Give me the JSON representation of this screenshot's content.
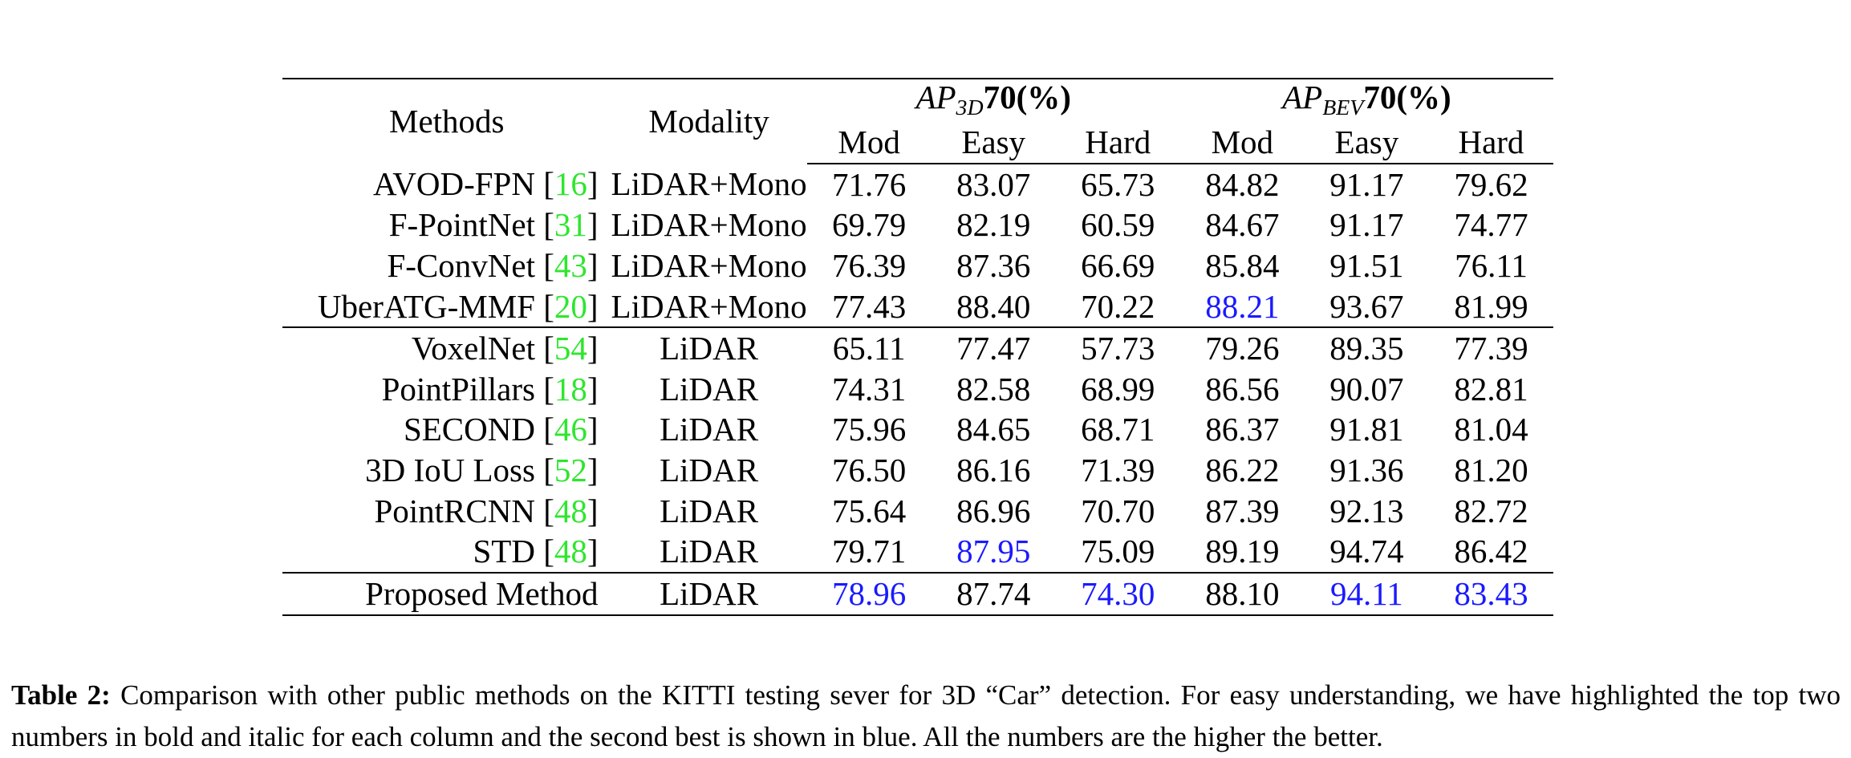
{
  "table": {
    "headers": {
      "methods": "Methods",
      "modality": "Modality",
      "groups": [
        {
          "ap": "AP",
          "sub": "3D",
          "threshold": "70(%)"
        },
        {
          "ap": "AP",
          "sub": "BEV",
          "threshold": "70(%)"
        }
      ],
      "subcols": [
        "Mod",
        "Easy",
        "Hard",
        "Mod",
        "Easy",
        "Hard"
      ]
    },
    "rows": [
      {
        "method": "AVOD-FPN",
        "cite": "16",
        "modality": "LiDAR+Mono",
        "values": [
          "71.76",
          "83.07",
          "65.73",
          "84.82",
          "91.17",
          "79.62"
        ],
        "styles": [
          "",
          "",
          "",
          "",
          "",
          ""
        ]
      },
      {
        "method": "F-PointNet",
        "cite": "31",
        "modality": "LiDAR+Mono",
        "values": [
          "69.79",
          "82.19",
          "60.59",
          "84.67",
          "91.17",
          "74.77"
        ],
        "styles": [
          "",
          "",
          "",
          "",
          "",
          ""
        ]
      },
      {
        "method": "F-ConvNet",
        "cite": "43",
        "modality": "LiDAR+Mono",
        "values": [
          "76.39",
          "87.36",
          "66.69",
          "85.84",
          "91.51",
          "76.11"
        ],
        "styles": [
          "",
          "",
          "",
          "",
          "",
          ""
        ]
      },
      {
        "method": "UberATG-MMF",
        "cite": "20",
        "modality": "LiDAR+Mono",
        "values": [
          "77.43",
          "88.40",
          "70.22",
          "88.21",
          "93.67",
          "81.99"
        ],
        "styles": [
          "",
          "bold",
          "",
          "blue",
          "",
          ""
        ]
      },
      {
        "method": "VoxelNet",
        "cite": "54",
        "modality": "LiDAR",
        "values": [
          "65.11",
          "77.47",
          "57.73",
          "79.26",
          "89.35",
          "77.39"
        ],
        "styles": [
          "",
          "",
          "",
          "",
          "",
          ""
        ]
      },
      {
        "method": "PointPillars",
        "cite": "18",
        "modality": "LiDAR",
        "values": [
          "74.31",
          "82.58",
          "68.99",
          "86.56",
          "90.07",
          "82.81"
        ],
        "styles": [
          "",
          "",
          "",
          "",
          "",
          ""
        ]
      },
      {
        "method": "SECOND",
        "cite": "46",
        "modality": "LiDAR",
        "values": [
          "75.96",
          "84.65",
          "68.71",
          "86.37",
          "91.81",
          "81.04"
        ],
        "styles": [
          "",
          "",
          "",
          "",
          "",
          ""
        ]
      },
      {
        "method": "3D IoU Loss",
        "cite": "52",
        "modality": "LiDAR",
        "values": [
          "76.50",
          "86.16",
          "71.39",
          "86.22",
          "91.36",
          "81.20"
        ],
        "styles": [
          "",
          "",
          "",
          "",
          "",
          ""
        ]
      },
      {
        "method": "PointRCNN",
        "cite": "48",
        "modality": "LiDAR",
        "values": [
          "75.64",
          "86.96",
          "70.70",
          "87.39",
          "92.13",
          "82.72"
        ],
        "styles": [
          "",
          "",
          "",
          "",
          "",
          ""
        ]
      },
      {
        "method": "STD",
        "cite": "48",
        "modality": "LiDAR",
        "values": [
          "79.71",
          "87.95",
          "75.09",
          "89.19",
          "94.74",
          "86.42"
        ],
        "styles": [
          "bold",
          "blue",
          "bold",
          "bold",
          "bold",
          "bold"
        ]
      },
      {
        "method": "Proposed Method",
        "cite": "",
        "modality": "LiDAR",
        "values": [
          "78.96",
          "87.74",
          "74.30",
          "88.10",
          "94.11",
          "83.43"
        ],
        "styles": [
          "blue",
          "",
          "blue",
          "",
          "blue",
          "blue"
        ]
      }
    ],
    "group_end_rows": [
      3,
      9
    ]
  },
  "caption": {
    "label": "Table 2:",
    "text": " Comparison with other public methods on the KITTI testing sever for 3D “Car” detection. For easy understanding, we have highlighted the top two numbers in bold and italic for each column and the second best is shown in blue. All the numbers are the higher the better."
  },
  "colors": {
    "citation": "#2ee62e",
    "second_best": "#1a1aff",
    "text": "#000000"
  }
}
